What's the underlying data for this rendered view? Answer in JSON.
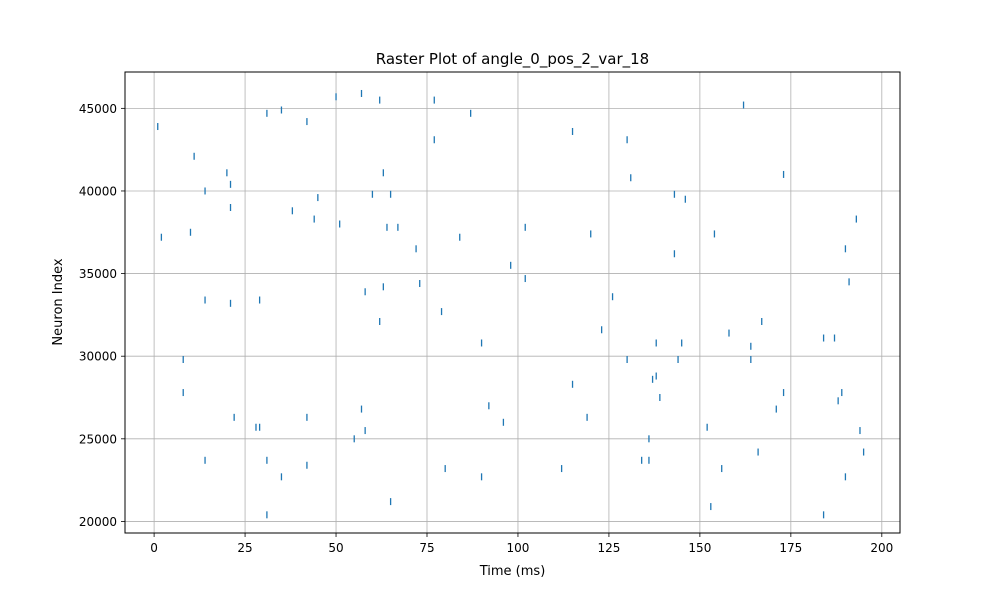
{
  "chart_data": {
    "type": "scatter",
    "marker": "vertical-line",
    "title": "Raster Plot of angle_0_pos_2_var_18",
    "xlabel": "Time (ms)",
    "ylabel": "Neuron Index",
    "xlim": [
      -8,
      205
    ],
    "ylim": [
      19300,
      47200
    ],
    "xticks": [
      0,
      25,
      50,
      75,
      100,
      125,
      150,
      175,
      200
    ],
    "yticks": [
      20000,
      25000,
      30000,
      35000,
      40000,
      45000
    ],
    "grid": true,
    "color": "#1f77b4",
    "spikes": [
      {
        "x": 1,
        "y": 43900
      },
      {
        "x": 2,
        "y": 37200
      },
      {
        "x": 8,
        "y": 29800
      },
      {
        "x": 8,
        "y": 27800
      },
      {
        "x": 10,
        "y": 37500
      },
      {
        "x": 11,
        "y": 42100
      },
      {
        "x": 14,
        "y": 33400
      },
      {
        "x": 14,
        "y": 40000
      },
      {
        "x": 14,
        "y": 23700
      },
      {
        "x": 20,
        "y": 41100
      },
      {
        "x": 21,
        "y": 40400
      },
      {
        "x": 21,
        "y": 39000
      },
      {
        "x": 21,
        "y": 33200
      },
      {
        "x": 22,
        "y": 26300
      },
      {
        "x": 28,
        "y": 25700
      },
      {
        "x": 29,
        "y": 25700
      },
      {
        "x": 29,
        "y": 33400
      },
      {
        "x": 31,
        "y": 44700
      },
      {
        "x": 31,
        "y": 23700
      },
      {
        "x": 31,
        "y": 20400
      },
      {
        "x": 35,
        "y": 44900
      },
      {
        "x": 35,
        "y": 22700
      },
      {
        "x": 38,
        "y": 38800
      },
      {
        "x": 42,
        "y": 44200
      },
      {
        "x": 42,
        "y": 26300
      },
      {
        "x": 42,
        "y": 23400
      },
      {
        "x": 44,
        "y": 38300
      },
      {
        "x": 45,
        "y": 39600
      },
      {
        "x": 50,
        "y": 45700
      },
      {
        "x": 51,
        "y": 38000
      },
      {
        "x": 55,
        "y": 25000
      },
      {
        "x": 57,
        "y": 45900
      },
      {
        "x": 57,
        "y": 26800
      },
      {
        "x": 58,
        "y": 33900
      },
      {
        "x": 58,
        "y": 25500
      },
      {
        "x": 60,
        "y": 39800
      },
      {
        "x": 62,
        "y": 45500
      },
      {
        "x": 62,
        "y": 32100
      },
      {
        "x": 63,
        "y": 41100
      },
      {
        "x": 63,
        "y": 34200
      },
      {
        "x": 64,
        "y": 37800
      },
      {
        "x": 65,
        "y": 39800
      },
      {
        "x": 65,
        "y": 21200
      },
      {
        "x": 67,
        "y": 37800
      },
      {
        "x": 72,
        "y": 36500
      },
      {
        "x": 73,
        "y": 34400
      },
      {
        "x": 77,
        "y": 45500
      },
      {
        "x": 77,
        "y": 43100
      },
      {
        "x": 79,
        "y": 32700
      },
      {
        "x": 80,
        "y": 23200
      },
      {
        "x": 84,
        "y": 37200
      },
      {
        "x": 87,
        "y": 44700
      },
      {
        "x": 90,
        "y": 30800
      },
      {
        "x": 90,
        "y": 22700
      },
      {
        "x": 92,
        "y": 27000
      },
      {
        "x": 96,
        "y": 26000
      },
      {
        "x": 98,
        "y": 35500
      },
      {
        "x": 102,
        "y": 37800
      },
      {
        "x": 102,
        "y": 34700
      },
      {
        "x": 112,
        "y": 23200
      },
      {
        "x": 115,
        "y": 43600
      },
      {
        "x": 115,
        "y": 28300
      },
      {
        "x": 119,
        "y": 26300
      },
      {
        "x": 120,
        "y": 37400
      },
      {
        "x": 123,
        "y": 31600
      },
      {
        "x": 126,
        "y": 33600
      },
      {
        "x": 130,
        "y": 43100
      },
      {
        "x": 130,
        "y": 29800
      },
      {
        "x": 131,
        "y": 40800
      },
      {
        "x": 134,
        "y": 23700
      },
      {
        "x": 136,
        "y": 25000
      },
      {
        "x": 136,
        "y": 23700
      },
      {
        "x": 137,
        "y": 28600
      },
      {
        "x": 138,
        "y": 30800
      },
      {
        "x": 138,
        "y": 28800
      },
      {
        "x": 139,
        "y": 27500
      },
      {
        "x": 143,
        "y": 39800
      },
      {
        "x": 143,
        "y": 36200
      },
      {
        "x": 144,
        "y": 29800
      },
      {
        "x": 145,
        "y": 30800
      },
      {
        "x": 146,
        "y": 39500
      },
      {
        "x": 152,
        "y": 25700
      },
      {
        "x": 153,
        "y": 20900
      },
      {
        "x": 154,
        "y": 37400
      },
      {
        "x": 156,
        "y": 23200
      },
      {
        "x": 158,
        "y": 31400
      },
      {
        "x": 162,
        "y": 45200
      },
      {
        "x": 164,
        "y": 29800
      },
      {
        "x": 164,
        "y": 30600
      },
      {
        "x": 166,
        "y": 24200
      },
      {
        "x": 167,
        "y": 32100
      },
      {
        "x": 171,
        "y": 26800
      },
      {
        "x": 173,
        "y": 41000
      },
      {
        "x": 173,
        "y": 27800
      },
      {
        "x": 184,
        "y": 31100
      },
      {
        "x": 184,
        "y": 20400
      },
      {
        "x": 187,
        "y": 31100
      },
      {
        "x": 188,
        "y": 27300
      },
      {
        "x": 189,
        "y": 27800
      },
      {
        "x": 190,
        "y": 36500
      },
      {
        "x": 190,
        "y": 22700
      },
      {
        "x": 191,
        "y": 34500
      },
      {
        "x": 193,
        "y": 38300
      },
      {
        "x": 194,
        "y": 25500
      },
      {
        "x": 195,
        "y": 24200
      }
    ]
  }
}
